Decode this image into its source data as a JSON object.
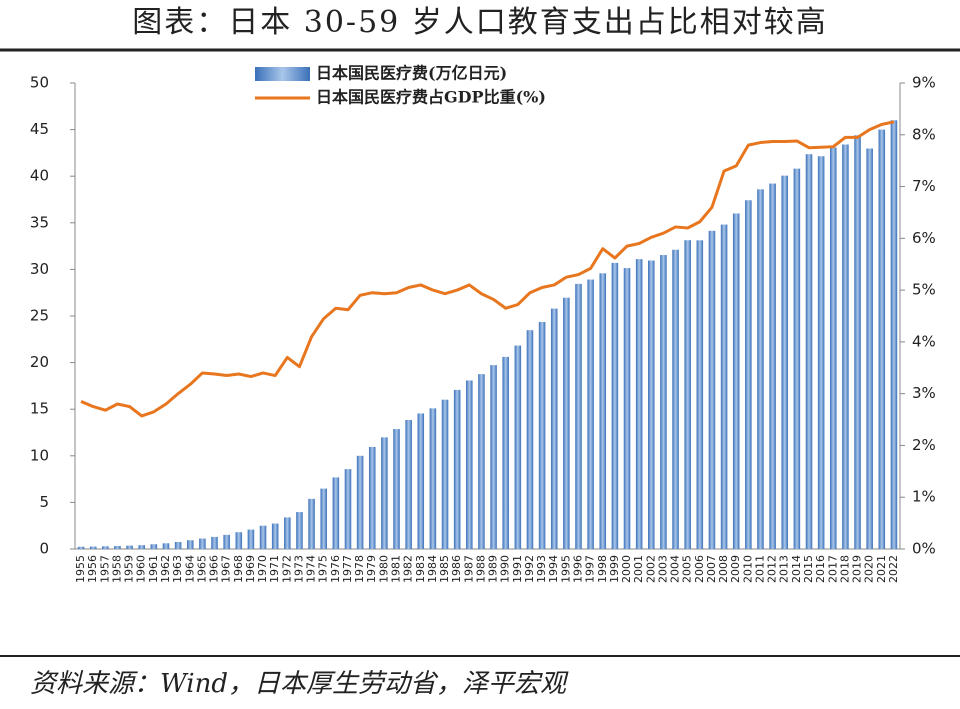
{
  "chart_data": {
    "type": "bar",
    "title": "图表：日本 30-59 岁人口教育支出占比相对较高",
    "source": "资料来源：Wind，日本厚生劳动省，泽平宏观",
    "categories": [
      "1955",
      "1956",
      "1957",
      "1958",
      "1959",
      "1960",
      "1961",
      "1962",
      "1963",
      "1964",
      "1965",
      "1966",
      "1967",
      "1968",
      "1969",
      "1970",
      "1971",
      "1972",
      "1973",
      "1974",
      "1975",
      "1976",
      "1977",
      "1978",
      "1979",
      "1980",
      "1981",
      "1982",
      "1983",
      "1984",
      "1985",
      "1986",
      "1987",
      "1988",
      "1989",
      "1990",
      "1991",
      "1992",
      "1993",
      "1994",
      "1995",
      "1996",
      "1997",
      "1998",
      "1999",
      "2000",
      "2001",
      "2002",
      "2003",
      "2004",
      "2005",
      "2006",
      "2007",
      "2008",
      "2009",
      "2010",
      "2011",
      "2012",
      "2013",
      "2014",
      "2015",
      "2016",
      "2017",
      "2018",
      "2019",
      "2020",
      "2021",
      "2022"
    ],
    "series": [
      {
        "name": "日本国民医疗费(万亿日元)",
        "type": "bar",
        "color": "#5b8fd0",
        "values": [
          0.24,
          0.26,
          0.29,
          0.32,
          0.36,
          0.41,
          0.51,
          0.61,
          0.75,
          0.94,
          1.12,
          1.3,
          1.52,
          1.8,
          2.08,
          2.5,
          2.73,
          3.39,
          3.96,
          5.38,
          6.48,
          7.68,
          8.57,
          10.0,
          10.95,
          11.98,
          12.87,
          13.84,
          14.54,
          15.09,
          16.02,
          17.07,
          18.08,
          18.76,
          19.73,
          20.61,
          21.83,
          23.48,
          24.36,
          25.79,
          26.96,
          28.45,
          28.91,
          29.58,
          30.7,
          30.14,
          31.1,
          30.95,
          31.54,
          32.11,
          33.13,
          33.12,
          34.14,
          34.81,
          36.0,
          37.42,
          38.59,
          39.21,
          40.06,
          40.81,
          42.36,
          42.14,
          43.07,
          43.4,
          44.39,
          42.97,
          45.0,
          46.0
        ]
      },
      {
        "name": "日本国民医疗费占GDP比重(%)",
        "type": "line",
        "axis": "y2",
        "color": "#e8761e",
        "values": [
          2.85,
          2.75,
          2.68,
          2.8,
          2.75,
          2.57,
          2.65,
          2.8,
          3.0,
          3.18,
          3.4,
          3.38,
          3.35,
          3.38,
          3.33,
          3.4,
          3.35,
          3.7,
          3.52,
          4.1,
          4.45,
          4.65,
          4.62,
          4.9,
          4.95,
          4.93,
          4.95,
          5.05,
          5.1,
          5.0,
          4.93,
          5.0,
          5.1,
          4.93,
          4.82,
          4.65,
          4.72,
          4.95,
          5.05,
          5.1,
          5.25,
          5.3,
          5.42,
          5.8,
          5.62,
          5.85,
          5.9,
          6.02,
          6.1,
          6.22,
          6.2,
          6.32,
          6.6,
          7.3,
          7.4,
          7.8,
          7.85,
          7.87,
          7.87,
          7.88,
          7.75,
          7.76,
          7.77,
          7.95,
          7.95,
          8.1,
          8.2,
          8.25
        ]
      }
    ],
    "ylim": [
      0,
      50
    ],
    "yticks": [
      0,
      5,
      10,
      15,
      20,
      25,
      30,
      35,
      40,
      45,
      50
    ],
    "y2lim": [
      0,
      9
    ],
    "y2ticks": [
      {
        "value": 0,
        "label": "0%"
      },
      {
        "value": 1,
        "label": "1%"
      },
      {
        "value": 2,
        "label": "2%"
      },
      {
        "value": 3,
        "label": "3%"
      },
      {
        "value": 4,
        "label": "4%"
      },
      {
        "value": 5,
        "label": "5%"
      },
      {
        "value": 6,
        "label": "6%"
      },
      {
        "value": 7,
        "label": "7%"
      },
      {
        "value": 8,
        "label": "8%"
      },
      {
        "value": 9,
        "label": "9%"
      }
    ]
  }
}
